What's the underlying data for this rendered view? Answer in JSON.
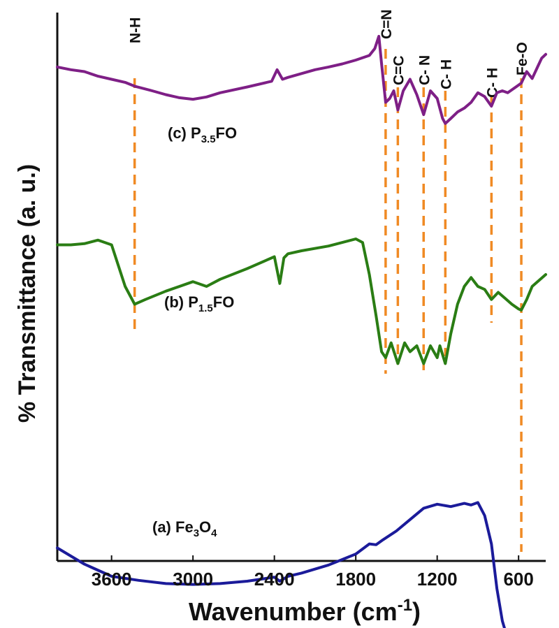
{
  "chart_data": {
    "type": "line",
    "xlabel": "Wavenumber (cm-1)",
    "xlabel_main": "Wavenumber (cm",
    "xlabel_sup": "-1",
    "xlabel_close": ")",
    "ylabel": "% Transmittance (a. u.)",
    "xlim": [
      4000,
      400
    ],
    "x_reversed": true,
    "xticks": [
      3600,
      3000,
      2400,
      1800,
      1200,
      600
    ],
    "xtick_labels": [
      "3600",
      "3000",
      "2400",
      "1800",
      "1200",
      "600"
    ],
    "grid": false,
    "peak_markers": [
      {
        "label": "N-H",
        "x": 3430,
        "color": "#F08A24"
      },
      {
        "label": "C=N",
        "x": 1580,
        "color": "#F08A24"
      },
      {
        "label": "C=C",
        "x": 1490,
        "color": "#F08A24"
      },
      {
        "label": "C- N",
        "x": 1300,
        "color": "#F08A24"
      },
      {
        "label": "C- H",
        "x": 1140,
        "color": "#F08A24"
      },
      {
        "label": "C- H",
        "x": 800,
        "color": "#F08A24"
      },
      {
        "label": "Fe-O",
        "x": 580,
        "color": "#F08A24"
      }
    ],
    "series": [
      {
        "key": "a",
        "label_prefix": "(a) ",
        "label_parts": [
          {
            "t": "Fe"
          },
          {
            "t": "3",
            "sub": true
          },
          {
            "t": "O"
          },
          {
            "t": "4",
            "sub": true
          }
        ],
        "color": "#1B1B9A",
        "x": [
          4000,
          3800,
          3600,
          3400,
          3200,
          3000,
          2800,
          2600,
          2400,
          2360,
          2300,
          2200,
          2000,
          1800,
          1700,
          1650,
          1600,
          1500,
          1400,
          1300,
          1200,
          1100,
          1000,
          950,
          900,
          850,
          800,
          760,
          720,
          680,
          640,
          600,
          560,
          520,
          480,
          440,
          400
        ],
        "y": [
          -1.8,
          -2.2,
          -2.5,
          -2.6,
          -2.68,
          -2.7,
          -2.68,
          -2.62,
          -2.52,
          -2.62,
          -2.5,
          -2.42,
          -2.22,
          -1.95,
          -1.7,
          -1.72,
          -1.6,
          -1.38,
          -1.1,
          -0.82,
          -0.72,
          -0.78,
          -0.7,
          -0.74,
          -0.68,
          -1.0,
          -1.7,
          -2.8,
          -3.6,
          -4.05,
          -4.25,
          -4.3,
          -4.28,
          -4.05,
          -4.15,
          -4.38,
          -4.45
        ]
      },
      {
        "key": "b",
        "label_prefix": "(b) ",
        "label_parts": [
          {
            "t": "P"
          },
          {
            "t": "1.5",
            "sub": true
          },
          {
            "t": "FO"
          }
        ],
        "color": "#2A7D14",
        "x": [
          4000,
          3900,
          3800,
          3700,
          3600,
          3500,
          3430,
          3350,
          3200,
          3000,
          2900,
          2800,
          2600,
          2400,
          2360,
          2330,
          2300,
          2200,
          2000,
          1800,
          1750,
          1700,
          1650,
          1610,
          1580,
          1540,
          1490,
          1440,
          1400,
          1350,
          1300,
          1250,
          1200,
          1180,
          1140,
          1100,
          1050,
          1000,
          950,
          900,
          850,
          800,
          750,
          700,
          650,
          600,
          580,
          540,
          500,
          450,
          400
        ],
        "y": [
          -0.3,
          -0.3,
          -0.28,
          -0.22,
          -0.3,
          -1.0,
          -1.3,
          -1.22,
          -1.08,
          -0.92,
          -1.0,
          -0.88,
          -0.7,
          -0.5,
          -0.95,
          -0.52,
          -0.45,
          -0.4,
          -0.32,
          -0.2,
          -0.26,
          -0.8,
          -1.5,
          -2.1,
          -2.2,
          -1.95,
          -2.3,
          -1.95,
          -2.1,
          -2.0,
          -2.3,
          -2.0,
          -2.2,
          -2.0,
          -2.3,
          -1.8,
          -1.3,
          -1.0,
          -0.85,
          -1.0,
          -1.05,
          -1.22,
          -1.1,
          -1.2,
          -1.3,
          -1.38,
          -1.4,
          -1.22,
          -1.0,
          -0.9,
          -0.8
        ]
      },
      {
        "key": "c",
        "label_prefix": "(c) ",
        "label_parts": [
          {
            "t": "P"
          },
          {
            "t": "3.5",
            "sub": true
          },
          {
            "t": "FO"
          }
        ],
        "color": "#7E1F86",
        "x": [
          4000,
          3900,
          3800,
          3700,
          3600,
          3500,
          3430,
          3300,
          3200,
          3100,
          3000,
          2900,
          2800,
          2600,
          2420,
          2380,
          2340,
          2300,
          2200,
          2100,
          2000,
          1900,
          1800,
          1700,
          1660,
          1630,
          1610,
          1580,
          1550,
          1520,
          1490,
          1450,
          1400,
          1350,
          1300,
          1250,
          1200,
          1160,
          1140,
          1100,
          1050,
          1000,
          950,
          900,
          850,
          800,
          760,
          720,
          680,
          640,
          600,
          580,
          540,
          500,
          460,
          430,
          400
        ],
        "y": [
          0.62,
          0.55,
          0.5,
          0.38,
          0.3,
          0.22,
          0.12,
          0.0,
          -0.1,
          -0.18,
          -0.22,
          -0.16,
          -0.05,
          0.1,
          0.25,
          0.55,
          0.3,
          0.35,
          0.45,
          0.55,
          0.62,
          0.7,
          0.8,
          0.92,
          1.1,
          1.42,
          0.7,
          -0.3,
          -0.2,
          0.0,
          -0.5,
          0.0,
          0.3,
          -0.1,
          -0.62,
          0.0,
          -0.2,
          -0.72,
          -0.85,
          -0.72,
          -0.55,
          -0.45,
          -0.3,
          -0.05,
          -0.15,
          -0.4,
          -0.05,
          0.0,
          -0.05,
          0.05,
          0.15,
          0.2,
          0.5,
          0.32,
          0.62,
          0.85,
          0.95
        ]
      }
    ]
  }
}
